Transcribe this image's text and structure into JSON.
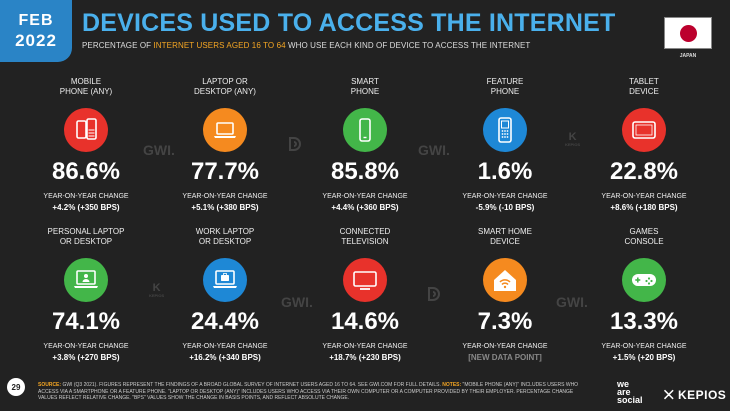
{
  "header": {
    "month": "FEB",
    "year": "2022",
    "title": "DEVICES USED TO ACCESS THE INTERNET",
    "subtitle_pre": "PERCENTAGE OF ",
    "subtitle_hl": "INTERNET USERS AGED 16 TO 64",
    "subtitle_post": " WHO USE EACH KIND OF DEVICE TO ACCESS THE INTERNET",
    "country": "JAPAN"
  },
  "colors": {
    "background": "#222222",
    "accent_blue": "#2a84c6",
    "title_blue": "#4ab0ec",
    "highlight": "#f5a623",
    "red": "#e8322b",
    "orange": "#f58a1f",
    "green": "#43b649",
    "blue": "#1e88d6"
  },
  "tiles": [
    {
      "label_1": "MOBILE",
      "label_2": "PHONE (ANY)",
      "value": "86.6%",
      "yoy_label": "YEAR-ON-YEAR CHANGE",
      "yoy_value": "+4.2% (+350 BPS)",
      "icon": "mobile-phones-icon",
      "color": "#e8322b"
    },
    {
      "label_1": "LAPTOP OR",
      "label_2": "DESKTOP (ANY)",
      "value": "77.7%",
      "yoy_label": "YEAR-ON-YEAR CHANGE",
      "yoy_value": "+5.1% (+380 BPS)",
      "icon": "laptop-icon",
      "color": "#f58a1f"
    },
    {
      "label_1": "SMART",
      "label_2": "PHONE",
      "value": "85.8%",
      "yoy_label": "YEAR-ON-YEAR CHANGE",
      "yoy_value": "+4.4% (+360 BPS)",
      "icon": "smartphone-icon",
      "color": "#43b649"
    },
    {
      "label_1": "FEATURE",
      "label_2": "PHONE",
      "value": "1.6%",
      "yoy_label": "YEAR-ON-YEAR CHANGE",
      "yoy_value": "-5.9% (-10 BPS)",
      "icon": "feature-phone-icon",
      "color": "#1e88d6"
    },
    {
      "label_1": "TABLET",
      "label_2": "DEVICE",
      "value": "22.8%",
      "yoy_label": "YEAR-ON-YEAR CHANGE",
      "yoy_value": "+8.6% (+180 BPS)",
      "icon": "tablet-icon",
      "color": "#e8322b"
    },
    {
      "label_1": "PERSONAL LAPTOP",
      "label_2": "OR DESKTOP",
      "value": "74.1%",
      "yoy_label": "YEAR-ON-YEAR CHANGE",
      "yoy_value": "+3.8% (+270 BPS)",
      "icon": "personal-computer-icon",
      "color": "#43b649"
    },
    {
      "label_1": "WORK LAPTOP",
      "label_2": "OR DESKTOP",
      "value": "24.4%",
      "yoy_label": "YEAR-ON-YEAR CHANGE",
      "yoy_value": "+16.2% (+340 BPS)",
      "icon": "work-computer-icon",
      "color": "#1e88d6"
    },
    {
      "label_1": "CONNECTED",
      "label_2": "TELEVISION",
      "value": "14.6%",
      "yoy_label": "YEAR-ON-YEAR CHANGE",
      "yoy_value": "+18.7% (+230 BPS)",
      "icon": "television-icon",
      "color": "#e8322b"
    },
    {
      "label_1": "SMART HOME",
      "label_2": "DEVICE",
      "value": "7.3%",
      "yoy_label": "YEAR-ON-YEAR CHANGE",
      "yoy_value": "[NEW DATA POINT]",
      "icon": "smart-home-icon",
      "color": "#f58a1f"
    },
    {
      "label_1": "GAMES",
      "label_2": "CONSOLE",
      "value": "13.3%",
      "yoy_label": "YEAR-ON-YEAR CHANGE",
      "yoy_value": "+1.5% (+20 BPS)",
      "icon": "gamepad-icon",
      "color": "#43b649"
    }
  ],
  "watermarks": {
    "gwi": "GWI.",
    "kepios_letter": "K",
    "kepios_small": "KEPIOS"
  },
  "footer": {
    "page": "29",
    "source_label": "SOURCE:",
    "source_text": " GWI (Q3 2021). FIGURES REPRESENT THE FINDINGS OF A BROAD GLOBAL SURVEY OF INTERNET USERS AGED 16 TO 64. SEE GWI.COM FOR FULL DETAILS. ",
    "notes_label": "NOTES:",
    "notes_text": " \"MOBILE PHONE (ANY)\" INCLUDES USERS WHO ACCESS VIA A SMARTPHONE OR A FEATURE PHONE. \"LAPTOP OR DESKTOP (ANY)\" INCLUDES USERS WHO ACCESS VIA THEIR OWN COMPUTER OR A COMPUTER PROVIDED BY THEIR EMPLOYER. PERCENTAGE CHANGE VALUES REFLECT RELATIVE CHANGE. \"BPS\" VALUES SHOW THE CHANGE IN BASIS POINTS, AND REFLECT ABSOLUTE CHANGE.",
    "brand_1": "we",
    "brand_2": "are",
    "brand_3": "social",
    "brand_kepios": "KEPIOS"
  }
}
